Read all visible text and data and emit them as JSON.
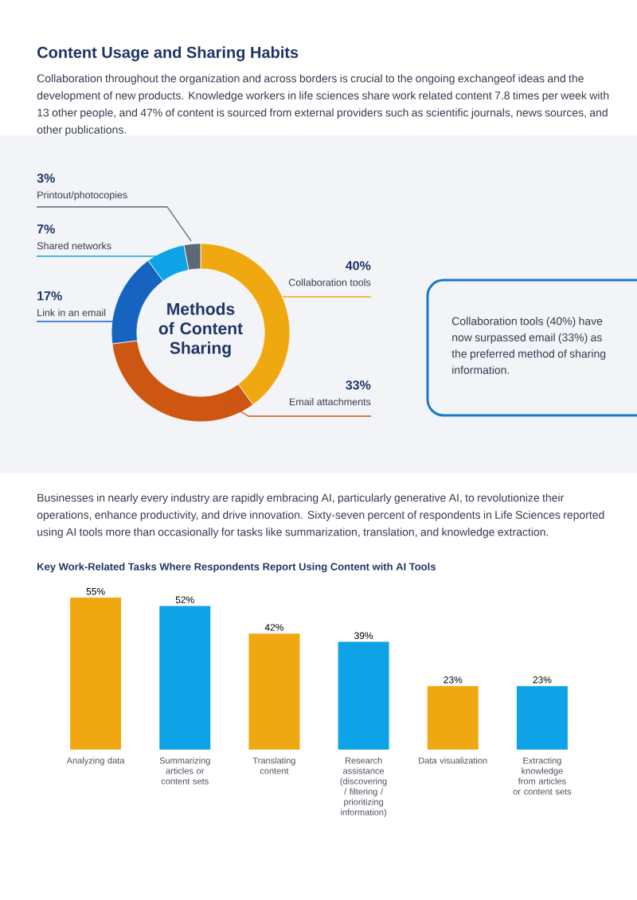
{
  "chart_data": [
    {
      "type": "donut",
      "title": "Content Usage and Sharing Habits",
      "subtitle": "Collaboration throughout the organization and across borders is crucial to the ongoing exchangeof ideas and the development of new products. Knowledge workers in life sciences share work related content 7.8 times per week with 13 other people, and 47% of content is sourced from external providers such as scientific journals, news sources, and other publications.",
      "categories": [
        "Collaboration tools",
        "Email attachments",
        "Link in an email",
        "Shared networks",
        "Printout/photocopies"
      ],
      "values": [
        40,
        33,
        17,
        7,
        3
      ],
      "colors": [
        "#f0a811",
        "#cc5612",
        "#1565c0",
        "#0ea2e6",
        "#5d6875"
      ],
      "value_labels": [
        "40%",
        "33%",
        "17%",
        "7%",
        "3%"
      ],
      "annotations": [
        "Methods of Content Sharing",
        "Collaboration tools (40%) have now surpassed email (33%) as the preferred method of sharing information."
      ]
    },
    {
      "type": "bar",
      "title": "Key Work-Related Tasks Where Respondents Report Using Content with AI Tools",
      "subtitle": "Businesses in nearly every industry are rapidly embracing AI, particularly generative AI, to revolutionize their operations, enhance productivity, and drive innovation. Sixty-seven percent of respondents in Life Sciences reported using AI tools more than occasionally for tasks like summarization, translation, and knowledge extraction.",
      "categories": [
        "Analyzing data",
        "Summarizing articles or content sets",
        "Translating content",
        "Research assistance (discovering / filtering / prioritizing information)",
        "Data visualization",
        "Extracting knowledge from articles or content sets"
      ],
      "values": [
        55,
        52,
        42,
        39,
        23,
        23
      ],
      "colors": [
        "#f0a811",
        "#0ea2e6",
        "#f0a811",
        "#0ea2e6",
        "#f0a811",
        "#0ea2e6"
      ],
      "value_labels": [
        "55%",
        "52%",
        "42%",
        "39%",
        "23%",
        "23%"
      ]
    }
  ]
}
